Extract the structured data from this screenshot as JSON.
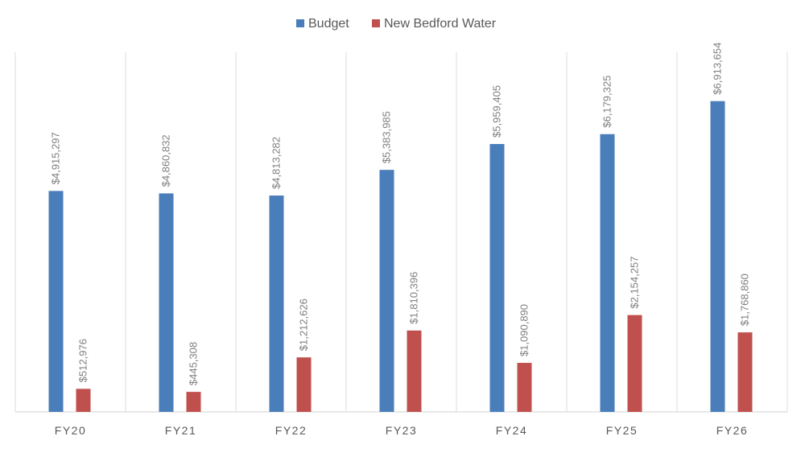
{
  "chart_data": {
    "type": "bar",
    "title": "",
    "xlabel": "",
    "ylabel": "",
    "categories": [
      "FY20",
      "FY21",
      "FY22",
      "FY23",
      "FY24",
      "FY25",
      "FY26"
    ],
    "series": [
      {
        "name": "Budget",
        "color": "#4a7ebb",
        "values": [
          4915297,
          4860832,
          4813282,
          5383985,
          5959405,
          6179325,
          6913654
        ],
        "labels": [
          "$4,915,297",
          "$4,860,832",
          "$4,813,282",
          "$5,383,985",
          "$5,959,405",
          "$6,179,325",
          "$6,913,654"
        ]
      },
      {
        "name": "New Bedford Water",
        "color": "#c0504d",
        "values": [
          512976,
          445308,
          1212626,
          1810396,
          1090890,
          2154257,
          1768860
        ],
        "labels": [
          "$512,976",
          "$445,308",
          "$1,212,626",
          "$1,810,396",
          "$1,090,890",
          "$2,154,257",
          "$1,768,860"
        ]
      }
    ],
    "ylim": [
      0,
      8000000
    ],
    "y_axis_visible": false,
    "grid": "vertical category separators",
    "legend": "top-center",
    "data_labels": "rotated vertical above bars"
  }
}
